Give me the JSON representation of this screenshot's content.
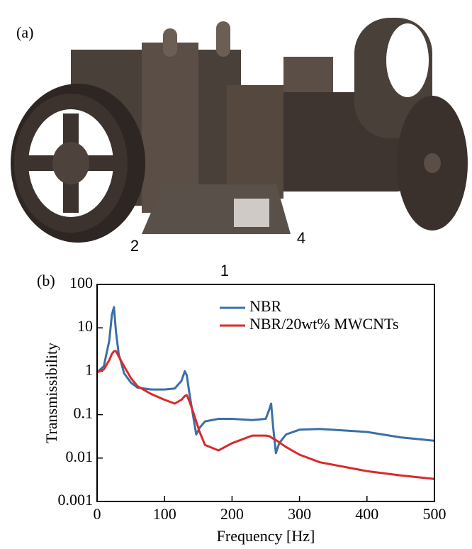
{
  "panel_a": {
    "label": "(a)",
    "callouts": [
      "2",
      "4",
      "1"
    ]
  },
  "chart_data": {
    "type": "line",
    "panel_label": "(b)",
    "x_label": "Frequency [Hz]",
    "y_label": "Transmissibility",
    "xlim": [
      0,
      500
    ],
    "xticks": [
      0,
      100,
      200,
      300,
      400,
      500
    ],
    "ylim": [
      0.001,
      100
    ],
    "yticks": [
      0.001,
      0.01,
      0.1,
      1,
      10,
      100
    ],
    "log_y": true,
    "grid": false,
    "legend": "upper right",
    "x": [
      0,
      10,
      18,
      22,
      25,
      28,
      32,
      40,
      50,
      60,
      80,
      100,
      115,
      125,
      130,
      133,
      137,
      142,
      147,
      152,
      160,
      180,
      200,
      230,
      250,
      255,
      258,
      261,
      265,
      270,
      280,
      300,
      330,
      400,
      450,
      500
    ],
    "series": [
      {
        "name": "NBR",
        "color": "#3b6fa6",
        "values": [
          0.95,
          1.3,
          5,
          20,
          30,
          8,
          2.5,
          0.9,
          0.55,
          0.42,
          0.38,
          0.38,
          0.4,
          0.6,
          1.0,
          0.8,
          0.3,
          0.1,
          0.035,
          0.05,
          0.07,
          0.08,
          0.08,
          0.075,
          0.08,
          0.13,
          0.18,
          0.05,
          0.013,
          0.022,
          0.035,
          0.045,
          0.047,
          0.04,
          0.03,
          0.025
        ]
      },
      {
        "name": "NBR/20wt% MWCNTs",
        "color": "#d92a2a",
        "values": [
          0.95,
          1.1,
          1.8,
          2.5,
          2.9,
          2.9,
          2.2,
          1.3,
          0.7,
          0.45,
          0.3,
          0.22,
          0.18,
          0.22,
          0.27,
          0.28,
          0.2,
          0.12,
          0.07,
          0.04,
          0.02,
          0.015,
          0.022,
          0.033,
          0.033,
          0.032,
          0.03,
          0.028,
          0.026,
          0.023,
          0.018,
          0.012,
          0.008,
          0.005,
          0.004,
          0.0033
        ]
      }
    ]
  }
}
